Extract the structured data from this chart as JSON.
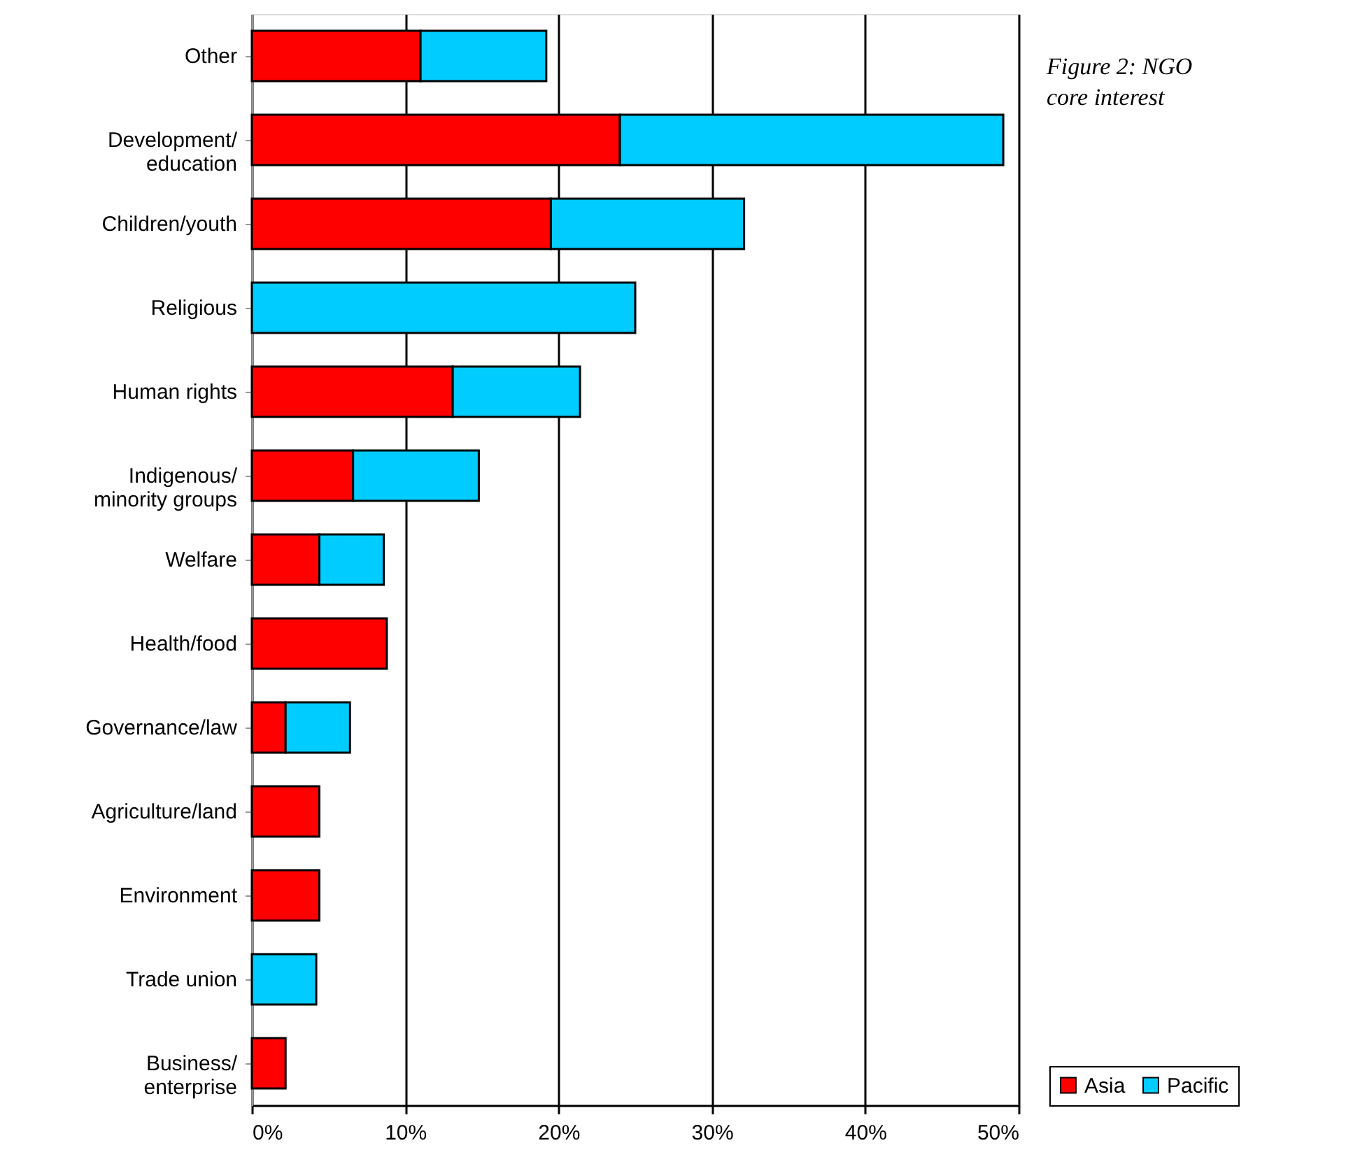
{
  "chart_data": {
    "type": "bar",
    "orientation": "horizontal",
    "stacked": true,
    "title": "Figure 2: NGO core interest",
    "categories": [
      "Other",
      "Development/ education",
      "Children/youth",
      "Religious",
      "Human rights",
      "Indigenous/ minority groups",
      "Welfare",
      "Health/food",
      "Governance/law",
      "Agriculture/land",
      "Environment",
      "Trade union",
      "Business/ enterprise"
    ],
    "series": [
      {
        "name": "Asia",
        "color": "#ff0000",
        "values": [
          11,
          24,
          19.5,
          null,
          13.1,
          6.6,
          4.4,
          8.8,
          2.2,
          4.4,
          4.4,
          null,
          2.2
        ]
      },
      {
        "name": "Pacific",
        "color": "#00ccff",
        "values": [
          8.2,
          25,
          12.6,
          25,
          8.3,
          8.2,
          4.2,
          null,
          4.2,
          null,
          null,
          4.2,
          null
        ]
      }
    ],
    "xlim": [
      0,
      50
    ],
    "xticks": [
      {
        "value": 0,
        "label": "0%"
      },
      {
        "value": 10,
        "label": "10%"
      },
      {
        "value": 20,
        "label": "20%"
      },
      {
        "value": 30,
        "label": "30%"
      },
      {
        "value": 40,
        "label": "40%"
      },
      {
        "value": 50,
        "label": "50%"
      }
    ],
    "grid": "x",
    "legend": "bottom right"
  }
}
